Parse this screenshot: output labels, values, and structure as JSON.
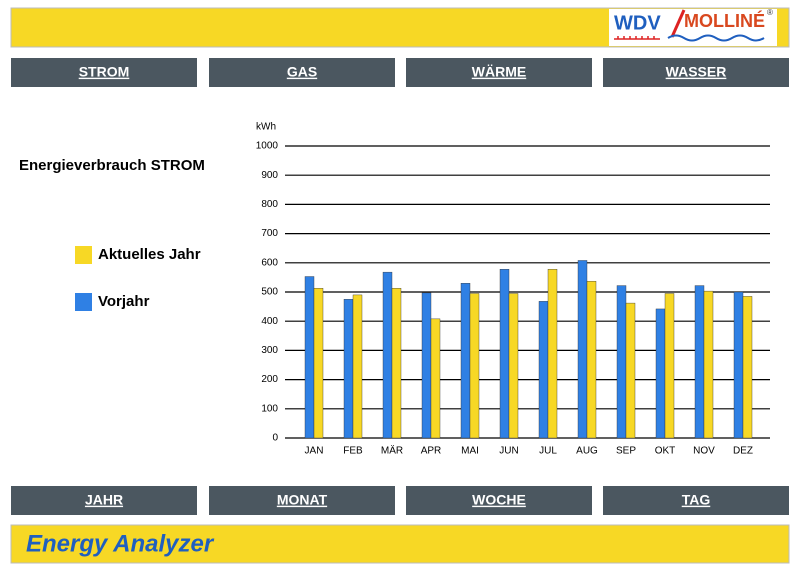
{
  "header": {
    "logo_left": "WDV",
    "logo_right": "MOLLINÉ",
    "logo_mark": "®"
  },
  "nav_top": [
    "STROM",
    "GAS",
    "WÄRME",
    "WASSER"
  ],
  "chart_data": {
    "type": "bar",
    "title": "Energieverbrauch STROM",
    "y_label": "kWh",
    "categories": [
      "JAN",
      "FEB",
      "MÄR",
      "APR",
      "MAI",
      "JUN",
      "JUL",
      "AUG",
      "SEP",
      "OKT",
      "NOV",
      "DEZ"
    ],
    "series": [
      {
        "name": "Vorjahr",
        "color": "#2f80e4",
        "values": [
          553,
          475,
          568,
          497,
          530,
          578,
          468,
          608,
          522,
          442,
          522,
          500
        ]
      },
      {
        "name": "Aktuelles Jahr",
        "color": "#f7d825",
        "values": [
          513,
          490,
          513,
          408,
          495,
          495,
          578,
          537,
          462,
          495,
          503,
          485
        ]
      }
    ],
    "ylim": [
      0,
      1000
    ],
    "yticks": [
      0,
      100,
      200,
      300,
      400,
      500,
      600,
      700,
      800,
      900,
      1000
    ],
    "grid": true
  },
  "nav_bottom": [
    "JAHR",
    "MONAT",
    "WOCHE",
    "TAG"
  ],
  "footer": {
    "title": "Energy Analyzer"
  }
}
